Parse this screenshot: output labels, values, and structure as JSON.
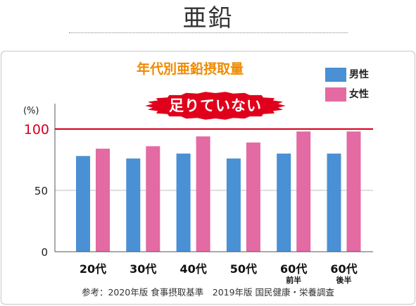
{
  "page": {
    "title": "亜鉛",
    "footer": "参考：2020年版 食事摂取基準　2019年版 国民健康・栄養調査"
  },
  "colors": {
    "male": "#4a90d4",
    "female": "#e36aa2",
    "reference_line": "#d6001c",
    "title": "#ef8a00",
    "badge": "#e0001b"
  },
  "chart_data": {
    "type": "bar",
    "title": "年代別亜鉛摂取量",
    "callout": "足りていない",
    "ylabel": "(%)",
    "ylim": [
      0,
      100
    ],
    "yticks": [
      0,
      50,
      100
    ],
    "reference_line": 100,
    "grid": true,
    "legend_position": "top-right",
    "categories": [
      {
        "label": "20代",
        "sub": ""
      },
      {
        "label": "30代",
        "sub": ""
      },
      {
        "label": "40代",
        "sub": ""
      },
      {
        "label": "50代",
        "sub": ""
      },
      {
        "label": "60代",
        "sub": "前半"
      },
      {
        "label": "60代",
        "sub": "後半"
      }
    ],
    "series": [
      {
        "name": "男性",
        "values": [
          78,
          76,
          80,
          76,
          80,
          80
        ]
      },
      {
        "name": "女性",
        "values": [
          84,
          86,
          94,
          89,
          98,
          98
        ]
      }
    ]
  }
}
